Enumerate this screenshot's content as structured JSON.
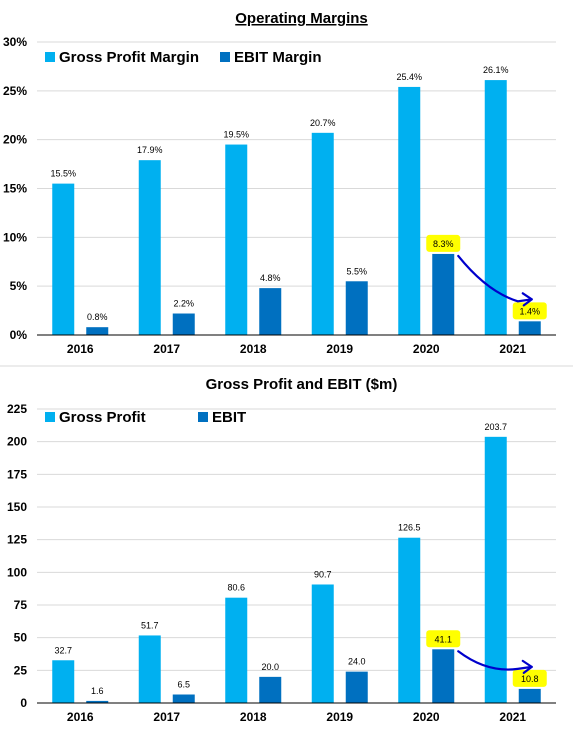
{
  "colors": {
    "series_a": "#00b0f0",
    "series_b": "#0070c0",
    "highlight": "#ffff00",
    "arrow": "#0000cc",
    "grid": "#d9d9d9",
    "axis": "#000000",
    "divider": "#d9d9d9"
  },
  "chart_data": [
    {
      "type": "bar",
      "title": "Operating Margins",
      "categories": [
        "2016",
        "2017",
        "2018",
        "2019",
        "2020",
        "2021"
      ],
      "series": [
        {
          "name": "Gross Profit Margin",
          "values": [
            15.5,
            17.9,
            19.5,
            20.7,
            25.4,
            26.1
          ],
          "labels": [
            "15.5%",
            "17.9%",
            "19.5%",
            "20.7%",
            "25.4%",
            "26.1%"
          ]
        },
        {
          "name": "EBIT Margin",
          "values": [
            0.8,
            2.2,
            4.8,
            5.5,
            8.3,
            1.4
          ],
          "labels": [
            "0.8%",
            "2.2%",
            "4.8%",
            "5.5%",
            "8.3%",
            "1.4%"
          ]
        }
      ],
      "ylim": [
        0,
        30
      ],
      "yticks": [
        0,
        5,
        10,
        15,
        20,
        25,
        30
      ],
      "ytick_labels": [
        "0%",
        "5%",
        "10%",
        "15%",
        "20%",
        "25%",
        "30%"
      ],
      "grid": true,
      "legend": "top-left",
      "highlighted_labels": [
        {
          "series": 1,
          "index": 4
        },
        {
          "series": 1,
          "index": 5
        }
      ],
      "annotation_arrow": {
        "from": {
          "series": 1,
          "index": 4
        },
        "to": {
          "series": 1,
          "index": 5
        }
      }
    },
    {
      "type": "bar",
      "title": "Gross Profit and EBIT ($m)",
      "categories": [
        "2016",
        "2017",
        "2018",
        "2019",
        "2020",
        "2021"
      ],
      "series": [
        {
          "name": "Gross Profit",
          "values": [
            32.7,
            51.7,
            80.6,
            90.7,
            126.5,
            203.7
          ],
          "labels": [
            "32.7",
            "51.7",
            "80.6",
            "90.7",
            "126.5",
            "203.7"
          ]
        },
        {
          "name": "EBIT",
          "values": [
            1.6,
            6.5,
            20.0,
            24.0,
            41.1,
            10.8
          ],
          "labels": [
            "1.6",
            "6.5",
            "20.0",
            "24.0",
            "41.1",
            "10.8"
          ]
        }
      ],
      "ylim": [
        0,
        225
      ],
      "yticks": [
        0,
        25,
        50,
        75,
        100,
        125,
        150,
        175,
        200,
        225
      ],
      "ytick_labels": [
        "0",
        "25",
        "50",
        "75",
        "100",
        "125",
        "150",
        "175",
        "200",
        "225"
      ],
      "grid": true,
      "legend": "top-left",
      "highlighted_labels": [
        {
          "series": 1,
          "index": 4
        },
        {
          "series": 1,
          "index": 5
        }
      ],
      "annotation_arrow": {
        "from": {
          "series": 1,
          "index": 4
        },
        "to": {
          "series": 1,
          "index": 5
        }
      }
    }
  ]
}
